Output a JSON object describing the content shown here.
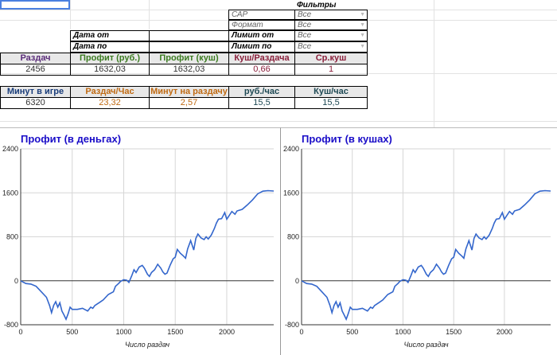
{
  "filters": {
    "title": "Фильтры",
    "rows": [
      {
        "label": "САР",
        "value": "Все"
      },
      {
        "label": "Формат",
        "value": "Все"
      },
      {
        "label": "Лимит от",
        "value": "Все"
      },
      {
        "label": "Лимит по",
        "value": "Все"
      }
    ]
  },
  "dates": {
    "from_label": "Дата от",
    "to_label": "Дата по",
    "from_value": "",
    "to_value": ""
  },
  "stats1": {
    "headers": [
      "Раздач",
      "Профит (руб.)",
      "Профит (куш)",
      "Куш/Раздача",
      "Ср.куш"
    ],
    "values": [
      "2456",
      "1632,03",
      "1632,03",
      "0,66",
      "1"
    ],
    "header_colors": [
      "#5b2d7a",
      "#3a7a1f",
      "#3a7a1f",
      "#8a1f3b",
      "#8a1f3b"
    ]
  },
  "stats2": {
    "headers": [
      "Минут в игре",
      "Раздач/Час",
      "Минут на раздачу",
      "руб./час",
      "Куш/час"
    ],
    "values": [
      "6320",
      "23,32",
      "2,57",
      "15,5",
      "15,5"
    ],
    "header_colors": [
      "#1a3d7a",
      "#c06a12",
      "#c06a12",
      "#1f4a55",
      "#1f4a55"
    ]
  },
  "charts": {
    "left_title": "Профит (в деньгах)",
    "right_title": "Профит (в кушах)",
    "xlabel": "Число раздач"
  },
  "chart_data": [
    {
      "type": "line",
      "title": "Профит (в деньгах)",
      "xlabel": "Число раздач",
      "ylabel": "",
      "xlim": [
        0,
        2456
      ],
      "ylim": [
        -800,
        2400
      ],
      "xticks": [
        0,
        500,
        1000,
        1500,
        2000
      ],
      "yticks": [
        -800,
        0,
        800,
        1600,
        2400
      ],
      "grid": true,
      "series": [
        {
          "x": [
            0,
            50,
            100,
            150,
            200,
            250,
            280,
            300,
            320,
            340,
            360,
            380,
            400,
            420,
            440,
            460,
            480,
            500,
            550,
            600,
            650,
            680,
            700,
            720,
            760,
            800,
            850,
            900,
            920,
            950,
            970,
            1000,
            1030,
            1050,
            1080,
            1100,
            1120,
            1150,
            1180,
            1200,
            1230,
            1250,
            1270,
            1300,
            1330,
            1360,
            1380,
            1400,
            1420,
            1450,
            1480,
            1500,
            1520,
            1550,
            1580,
            1600,
            1620,
            1650,
            1680,
            1700,
            1720,
            1750,
            1780,
            1800,
            1820,
            1850,
            1880,
            1900,
            1920,
            1950,
            1980,
            2000,
            2050,
            2080,
            2100,
            2150,
            2200,
            2250,
            2300,
            2350,
            2400,
            2456
          ],
          "y": [
            0,
            -50,
            -60,
            -100,
            -200,
            -300,
            -450,
            -580,
            -450,
            -380,
            -480,
            -400,
            -550,
            -620,
            -700,
            -600,
            -480,
            -520,
            -520,
            -500,
            -550,
            -480,
            -500,
            -450,
            -400,
            -350,
            -250,
            -200,
            -100,
            -50,
            -10,
            20,
            10,
            -30,
            100,
            200,
            150,
            250,
            280,
            230,
            120,
            80,
            150,
            200,
            300,
            230,
            160,
            120,
            140,
            280,
            400,
            430,
            570,
            500,
            450,
            410,
            580,
            730,
            560,
            770,
            850,
            780,
            750,
            800,
            760,
            830,
            950,
            1050,
            1120,
            1130,
            1240,
            1120,
            1260,
            1210,
            1270,
            1300,
            1380,
            1470,
            1580,
            1630,
            1640,
            1632
          ]
        }
      ]
    },
    {
      "type": "line",
      "title": "Профит (в кушах)",
      "xlabel": "Число раздач",
      "ylabel": "",
      "xlim": [
        0,
        2456
      ],
      "ylim": [
        -800,
        2400
      ],
      "xticks": [
        0,
        500,
        1000,
        1500,
        2000
      ],
      "yticks": [
        -800,
        0,
        800,
        1600,
        2400
      ],
      "grid": true,
      "series": [
        {
          "x": [
            0,
            50,
            100,
            150,
            200,
            250,
            280,
            300,
            320,
            340,
            360,
            380,
            400,
            420,
            440,
            460,
            480,
            500,
            550,
            600,
            650,
            680,
            700,
            720,
            760,
            800,
            850,
            900,
            920,
            950,
            970,
            1000,
            1030,
            1050,
            1080,
            1100,
            1120,
            1150,
            1180,
            1200,
            1230,
            1250,
            1270,
            1300,
            1330,
            1360,
            1380,
            1400,
            1420,
            1450,
            1480,
            1500,
            1520,
            1550,
            1580,
            1600,
            1620,
            1650,
            1680,
            1700,
            1720,
            1750,
            1780,
            1800,
            1820,
            1850,
            1880,
            1900,
            1920,
            1950,
            1980,
            2000,
            2050,
            2080,
            2100,
            2150,
            2200,
            2250,
            2300,
            2350,
            2400,
            2456
          ],
          "y": [
            0,
            -50,
            -60,
            -100,
            -200,
            -300,
            -450,
            -580,
            -450,
            -380,
            -480,
            -400,
            -550,
            -620,
            -700,
            -600,
            -480,
            -520,
            -520,
            -500,
            -550,
            -480,
            -500,
            -450,
            -400,
            -350,
            -250,
            -200,
            -100,
            -50,
            -10,
            20,
            10,
            -30,
            100,
            200,
            150,
            250,
            280,
            230,
            120,
            80,
            150,
            200,
            300,
            230,
            160,
            120,
            140,
            280,
            400,
            430,
            570,
            500,
            450,
            410,
            580,
            730,
            560,
            770,
            850,
            780,
            750,
            800,
            760,
            830,
            950,
            1050,
            1120,
            1130,
            1240,
            1120,
            1260,
            1210,
            1270,
            1300,
            1380,
            1470,
            1580,
            1630,
            1640,
            1632
          ]
        }
      ]
    }
  ]
}
